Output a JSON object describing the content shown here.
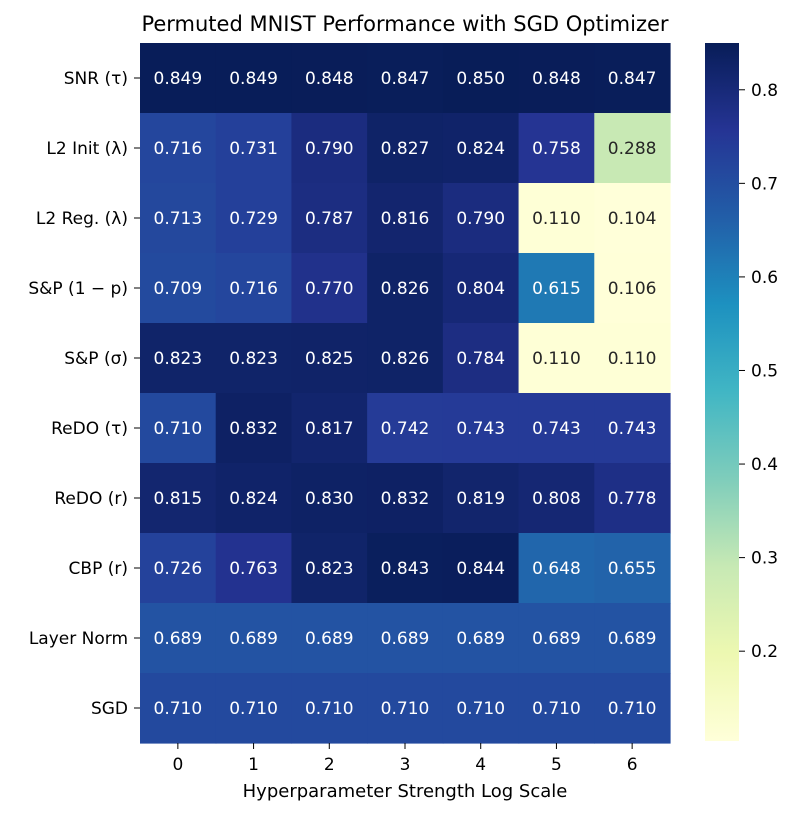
{
  "chart_data": {
    "type": "heatmap",
    "title": "Permuted MNIST Performance with SGD Optimizer",
    "xlabel": "Hyperparameter Strength Log Scale",
    "ylabel": "",
    "columns": [
      "0",
      "1",
      "2",
      "3",
      "4",
      "5",
      "6"
    ],
    "rows": [
      {
        "label": "SNR (τ)",
        "values": [
          0.849,
          0.849,
          0.848,
          0.847,
          0.85,
          0.848,
          0.847
        ]
      },
      {
        "label": "L2 Init (λ)",
        "values": [
          0.716,
          0.731,
          0.79,
          0.827,
          0.824,
          0.758,
          0.288
        ]
      },
      {
        "label": "L2 Reg. (λ)",
        "values": [
          0.713,
          0.729,
          0.787,
          0.816,
          0.79,
          0.11,
          0.104
        ]
      },
      {
        "label": "S&P (1 − p)",
        "values": [
          0.709,
          0.716,
          0.77,
          0.826,
          0.804,
          0.615,
          0.106
        ]
      },
      {
        "label": "S&P (σ)",
        "values": [
          0.823,
          0.823,
          0.825,
          0.826,
          0.784,
          0.11,
          0.11
        ]
      },
      {
        "label": "ReDO (τ)",
        "values": [
          0.71,
          0.832,
          0.817,
          0.742,
          0.743,
          0.743,
          0.743
        ]
      },
      {
        "label": "ReDO (r)",
        "values": [
          0.815,
          0.824,
          0.83,
          0.832,
          0.819,
          0.808,
          0.778
        ]
      },
      {
        "label": "CBP (r)",
        "values": [
          0.726,
          0.763,
          0.823,
          0.843,
          0.844,
          0.648,
          0.655
        ]
      },
      {
        "label": "Layer Norm",
        "values": [
          0.689,
          0.689,
          0.689,
          0.689,
          0.689,
          0.689,
          0.689
        ]
      },
      {
        "label": "SGD",
        "values": [
          0.71,
          0.71,
          0.71,
          0.71,
          0.71,
          0.71,
          0.71
        ]
      }
    ],
    "colormap": "YlGnBu",
    "color_range": [
      0.104,
      0.85
    ],
    "colorbar_ticks": [
      "0.2",
      "0.3",
      "0.4",
      "0.5",
      "0.6",
      "0.7",
      "0.8"
    ],
    "colorbar_tick_values": [
      0.2,
      0.3,
      0.4,
      0.5,
      0.6,
      0.7,
      0.8
    ],
    "value_format": "3 decimals",
    "colors": {
      "ylgnbu": [
        "#ffffd9",
        "#edf8b1",
        "#c7e9b4",
        "#7fcdbb",
        "#41b6c4",
        "#1d91c0",
        "#225ea8",
        "#253494",
        "#081d58"
      ],
      "text_light": "#ffffff",
      "text_dark": "#262626",
      "axis": "#000000"
    }
  }
}
